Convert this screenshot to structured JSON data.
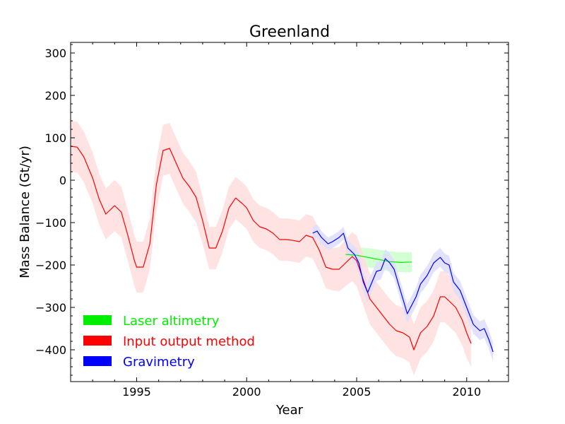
{
  "chart_data": {
    "type": "line",
    "title": "Greenland",
    "xlabel": "Year",
    "ylabel": "Mass Balance (Gt/yr)",
    "xlim": [
      1992,
      2011.9
    ],
    "ylim": [
      -475,
      325
    ],
    "xticks": [
      1995,
      2000,
      2005,
      2010
    ],
    "yticks": [
      -400,
      -300,
      -200,
      -100,
      0,
      100,
      200,
      300
    ],
    "grid": false,
    "legend_position": "lower-left",
    "series": [
      {
        "name": "Laser altimetry",
        "color": "#00ee00",
        "band_color": "#ccffcc",
        "x": [
          2004.5,
          2005.0,
          2005.5,
          2006.0,
          2006.5,
          2007.0,
          2007.5
        ],
        "y": [
          -175,
          -177,
          -182,
          -187,
          -192,
          -194,
          -193
        ],
        "lower": [
          -195,
          -200,
          -205,
          -210,
          -215,
          -217,
          -217
        ],
        "upper": [
          -158,
          -158,
          -160,
          -164,
          -168,
          -170,
          -170
        ]
      },
      {
        "name": "Input output method",
        "color": "#ff0000",
        "band_color": "#ffdddd",
        "x": [
          1992.0,
          1992.3,
          1992.6,
          1993.0,
          1993.3,
          1993.6,
          1994.0,
          1994.3,
          1994.6,
          1994.9,
          1995.0,
          1995.3,
          1995.6,
          1995.9,
          1996.2,
          1996.5,
          1996.8,
          1997.1,
          1997.4,
          1997.7,
          1998.0,
          1998.3,
          1998.6,
          1998.9,
          1999.2,
          1999.5,
          1999.8,
          2000.0,
          2000.3,
          2000.6,
          2000.9,
          2001.2,
          2001.5,
          2001.8,
          2002.1,
          2002.4,
          2002.7,
          2003.0,
          2003.3,
          2003.6,
          2003.9,
          2004.2,
          2004.5,
          2004.8,
          2005.0,
          2005.3,
          2005.6,
          2005.9,
          2006.2,
          2006.5,
          2006.8,
          2007.1,
          2007.4,
          2007.6,
          2007.9,
          2008.2,
          2008.5,
          2008.8,
          2009.0,
          2009.2,
          2009.5,
          2009.8,
          2010.0,
          2010.2
        ],
        "y": [
          80,
          78,
          55,
          5,
          -45,
          -80,
          -60,
          -75,
          -130,
          -190,
          -205,
          -205,
          -150,
          -10,
          70,
          75,
          40,
          5,
          -15,
          -40,
          -95,
          -160,
          -160,
          -120,
          -65,
          -42,
          -55,
          -65,
          -95,
          -110,
          -115,
          -125,
          -140,
          -140,
          -142,
          -145,
          -130,
          -135,
          -165,
          -205,
          -210,
          -210,
          -195,
          -180,
          -190,
          -235,
          -280,
          -300,
          -320,
          -340,
          -355,
          -360,
          -370,
          -400,
          -360,
          -345,
          -320,
          -275,
          -275,
          -285,
          -300,
          -330,
          -360,
          -385
        ],
        "lower": [
          20,
          18,
          -5,
          -55,
          -105,
          -140,
          -120,
          -135,
          -190,
          -250,
          -265,
          -265,
          -210,
          -70,
          10,
          15,
          -20,
          -55,
          -75,
          -100,
          -150,
          -210,
          -210,
          -170,
          -115,
          -92,
          -105,
          -115,
          -145,
          -160,
          -165,
          -175,
          -190,
          -190,
          -192,
          -195,
          -180,
          -185,
          -215,
          -255,
          -260,
          -262,
          -250,
          -238,
          -250,
          -295,
          -340,
          -360,
          -380,
          -400,
          -415,
          -420,
          -430,
          -460,
          -420,
          -405,
          -380,
          -335,
          -335,
          -345,
          -360,
          -390,
          -420,
          -440
        ],
        "upper": [
          140,
          138,
          115,
          65,
          15,
          -20,
          0,
          -15,
          -70,
          -130,
          -145,
          -145,
          -90,
          50,
          130,
          135,
          100,
          65,
          45,
          20,
          -40,
          -110,
          -110,
          -70,
          -15,
          8,
          -5,
          -15,
          -45,
          -60,
          -65,
          -75,
          -90,
          -90,
          -92,
          -95,
          -80,
          -85,
          -115,
          -155,
          -160,
          -158,
          -140,
          -122,
          -130,
          -175,
          -220,
          -240,
          -260,
          -280,
          -295,
          -300,
          -310,
          -340,
          -300,
          -285,
          -260,
          -215,
          -215,
          -225,
          -240,
          -270,
          -300,
          -330
        ]
      },
      {
        "name": "Gravimetry",
        "color": "#0000ff",
        "band_color": "#ddddff",
        "x": [
          2003.0,
          2003.2,
          2003.4,
          2003.7,
          2003.9,
          2004.2,
          2004.4,
          2004.6,
          2004.9,
          2005.1,
          2005.3,
          2005.5,
          2005.7,
          2005.9,
          2006.1,
          2006.3,
          2006.5,
          2006.7,
          2006.9,
          2007.1,
          2007.3,
          2007.5,
          2007.7,
          2007.9,
          2008.2,
          2008.5,
          2008.8,
          2009.0,
          2009.2,
          2009.4,
          2009.7,
          2010.0,
          2010.3,
          2010.6,
          2010.8,
          2011.0,
          2011.2
        ],
        "y": [
          -125,
          -120,
          -135,
          -150,
          -145,
          -135,
          -125,
          -160,
          -175,
          -195,
          -240,
          -265,
          -240,
          -215,
          -212,
          -185,
          -195,
          -210,
          -245,
          -280,
          -315,
          -295,
          -275,
          -245,
          -225,
          -195,
          -182,
          -195,
          -200,
          -240,
          -260,
          -300,
          -340,
          -355,
          -350,
          -375,
          -405
        ],
        "lower": [
          -140,
          -135,
          -150,
          -165,
          -160,
          -150,
          -140,
          -178,
          -195,
          -218,
          -263,
          -288,
          -262,
          -237,
          -234,
          -207,
          -217,
          -232,
          -267,
          -302,
          -337,
          -317,
          -297,
          -267,
          -247,
          -217,
          -204,
          -217,
          -222,
          -262,
          -282,
          -322,
          -362,
          -377,
          -372,
          -397,
          -427
        ],
        "upper": [
          -110,
          -105,
          -120,
          -135,
          -130,
          -120,
          -110,
          -142,
          -155,
          -172,
          -217,
          -242,
          -218,
          -193,
          -190,
          -163,
          -173,
          -188,
          -223,
          -258,
          -293,
          -273,
          -253,
          -223,
          -203,
          -173,
          -160,
          -173,
          -178,
          -218,
          -238,
          -278,
          -318,
          -333,
          -328,
          -353,
          -383
        ]
      }
    ]
  }
}
